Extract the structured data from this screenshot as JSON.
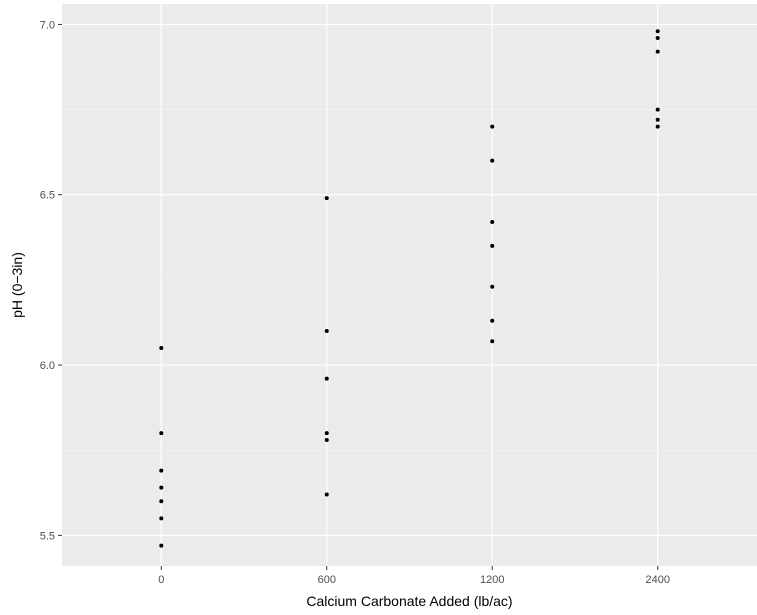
{
  "chart_data": {
    "type": "scatter",
    "title": "",
    "xlabel": "Calcium Carbonate Added (lb/ac)",
    "ylabel": "pH (0−3in)",
    "categories": [
      "0",
      "600",
      "1200",
      "2400"
    ],
    "ylim": [
      5.41,
      7.06
    ],
    "y_ticks": [
      5.5,
      6.0,
      6.5,
      7.0
    ],
    "y_tick_labels": [
      "5.5",
      "6.0",
      "6.5",
      "7.0"
    ],
    "grid": true,
    "legend": "none",
    "point_color": "#000000",
    "points": [
      {
        "x": "0",
        "y": 6.05
      },
      {
        "x": "0",
        "y": 5.8
      },
      {
        "x": "0",
        "y": 5.69
      },
      {
        "x": "0",
        "y": 5.64
      },
      {
        "x": "0",
        "y": 5.6
      },
      {
        "x": "0",
        "y": 5.55
      },
      {
        "x": "0",
        "y": 5.47
      },
      {
        "x": "600",
        "y": 6.49
      },
      {
        "x": "600",
        "y": 6.1
      },
      {
        "x": "600",
        "y": 5.96
      },
      {
        "x": "600",
        "y": 5.8
      },
      {
        "x": "600",
        "y": 5.78
      },
      {
        "x": "600",
        "y": 5.62
      },
      {
        "x": "1200",
        "y": 6.7
      },
      {
        "x": "1200",
        "y": 6.6
      },
      {
        "x": "1200",
        "y": 6.42
      },
      {
        "x": "1200",
        "y": 6.35
      },
      {
        "x": "1200",
        "y": 6.23
      },
      {
        "x": "1200",
        "y": 6.13
      },
      {
        "x": "1200",
        "y": 6.07
      },
      {
        "x": "2400",
        "y": 6.98
      },
      {
        "x": "2400",
        "y": 6.96
      },
      {
        "x": "2400",
        "y": 6.92
      },
      {
        "x": "2400",
        "y": 6.75
      },
      {
        "x": "2400",
        "y": 6.72
      },
      {
        "x": "2400",
        "y": 6.7
      }
    ]
  }
}
